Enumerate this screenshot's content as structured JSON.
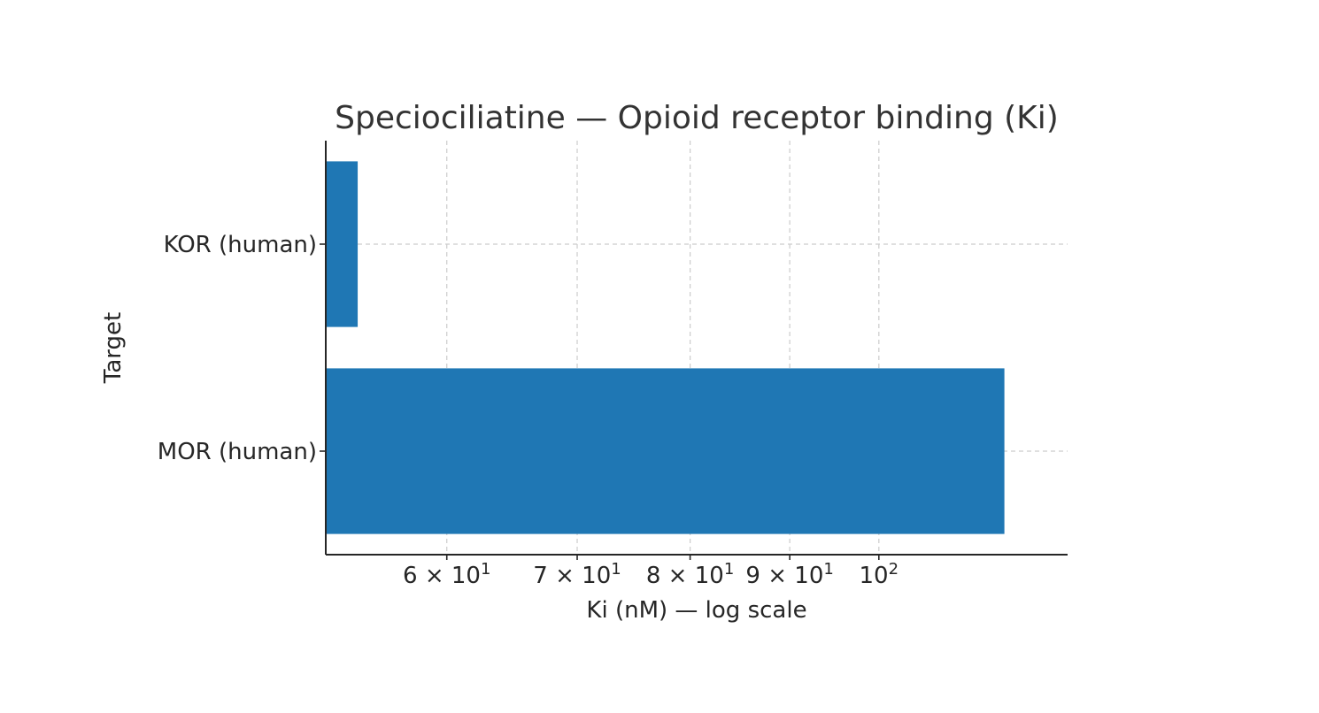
{
  "chart_data": {
    "type": "bar",
    "orientation": "horizontal",
    "title": "Speciociliatine — Opioid receptor binding (Ki)",
    "xlabel": "Ki (nM) — log scale",
    "ylabel": "Target",
    "xscale": "log",
    "xlim": [
      52,
      125
    ],
    "categories": [
      "KOR (human)",
      "MOR (human)"
    ],
    "values": [
      54,
      116
    ],
    "color": "#1f77b4",
    "grid": true,
    "x_ticks": [
      {
        "value": 60,
        "label": "6 × 10",
        "exp": "1"
      },
      {
        "value": 70,
        "label": "7 × 10",
        "exp": "1"
      },
      {
        "value": 80,
        "label": "8 × 10",
        "exp": "1"
      },
      {
        "value": 90,
        "label": "9 × 10",
        "exp": "1"
      },
      {
        "value": 100,
        "label": "10",
        "exp": "2"
      }
    ]
  }
}
